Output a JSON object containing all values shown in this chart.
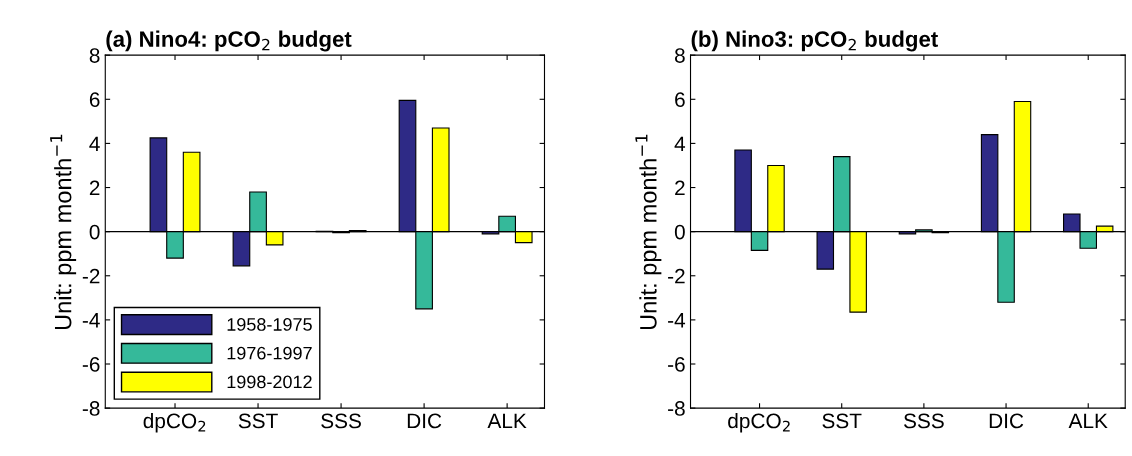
{
  "chart_data": [
    {
      "type": "bar",
      "title": "(a) Nino4: pCO$_{2}$ budget",
      "ylabel": "Unit: ppm month$^{−1}$",
      "categories": [
        "dpCO$_{2}$",
        "SST",
        "SSS",
        "DIC",
        "ALK"
      ],
      "series": [
        {
          "name": "1958-1975",
          "color": "#2e2a86",
          "values": [
            4.25,
            -1.55,
            0.02,
            5.95,
            -0.1
          ]
        },
        {
          "name": "1976-1997",
          "color": "#35b99a",
          "values": [
            -1.2,
            1.8,
            -0.05,
            -3.5,
            0.7
          ]
        },
        {
          "name": "1998-2012",
          "color": "#ffff00",
          "values": [
            3.6,
            -0.6,
            0.05,
            4.7,
            -0.5
          ]
        }
      ],
      "ylim": [
        -8,
        8
      ],
      "yticks": [
        -8,
        -6,
        -4,
        -2,
        0,
        2,
        4,
        6,
        8
      ],
      "grid": false,
      "legend": "bottom left",
      "ref_lines": [
        {
          "axis": "y",
          "value": 0,
          "color": "#000000"
        }
      ]
    },
    {
      "type": "bar",
      "title": "(b) Nino3: pCO$_{2}$ budget",
      "ylabel": "Unit: ppm month$^{−1}$",
      "categories": [
        "dpCO$_{2}$",
        "SST",
        "SSS",
        "DIC",
        "ALK"
      ],
      "series": [
        {
          "color": "#2e2a86",
          "values": [
            3.7,
            -1.7,
            -0.1,
            4.4,
            0.8
          ]
        },
        {
          "color": "#35b99a",
          "values": [
            -0.85,
            3.4,
            0.08,
            -3.2,
            -0.75
          ]
        },
        {
          "color": "#ffff00",
          "values": [
            3.0,
            -3.65,
            -0.05,
            5.9,
            0.25
          ]
        }
      ],
      "ylim": [
        -8,
        8
      ],
      "yticks": [
        -8,
        -6,
        -4,
        -2,
        0,
        2,
        4,
        6,
        8
      ],
      "grid": false,
      "ref_lines": [
        {
          "axis": "y",
          "value": 0,
          "color": "#000000"
        }
      ]
    }
  ]
}
